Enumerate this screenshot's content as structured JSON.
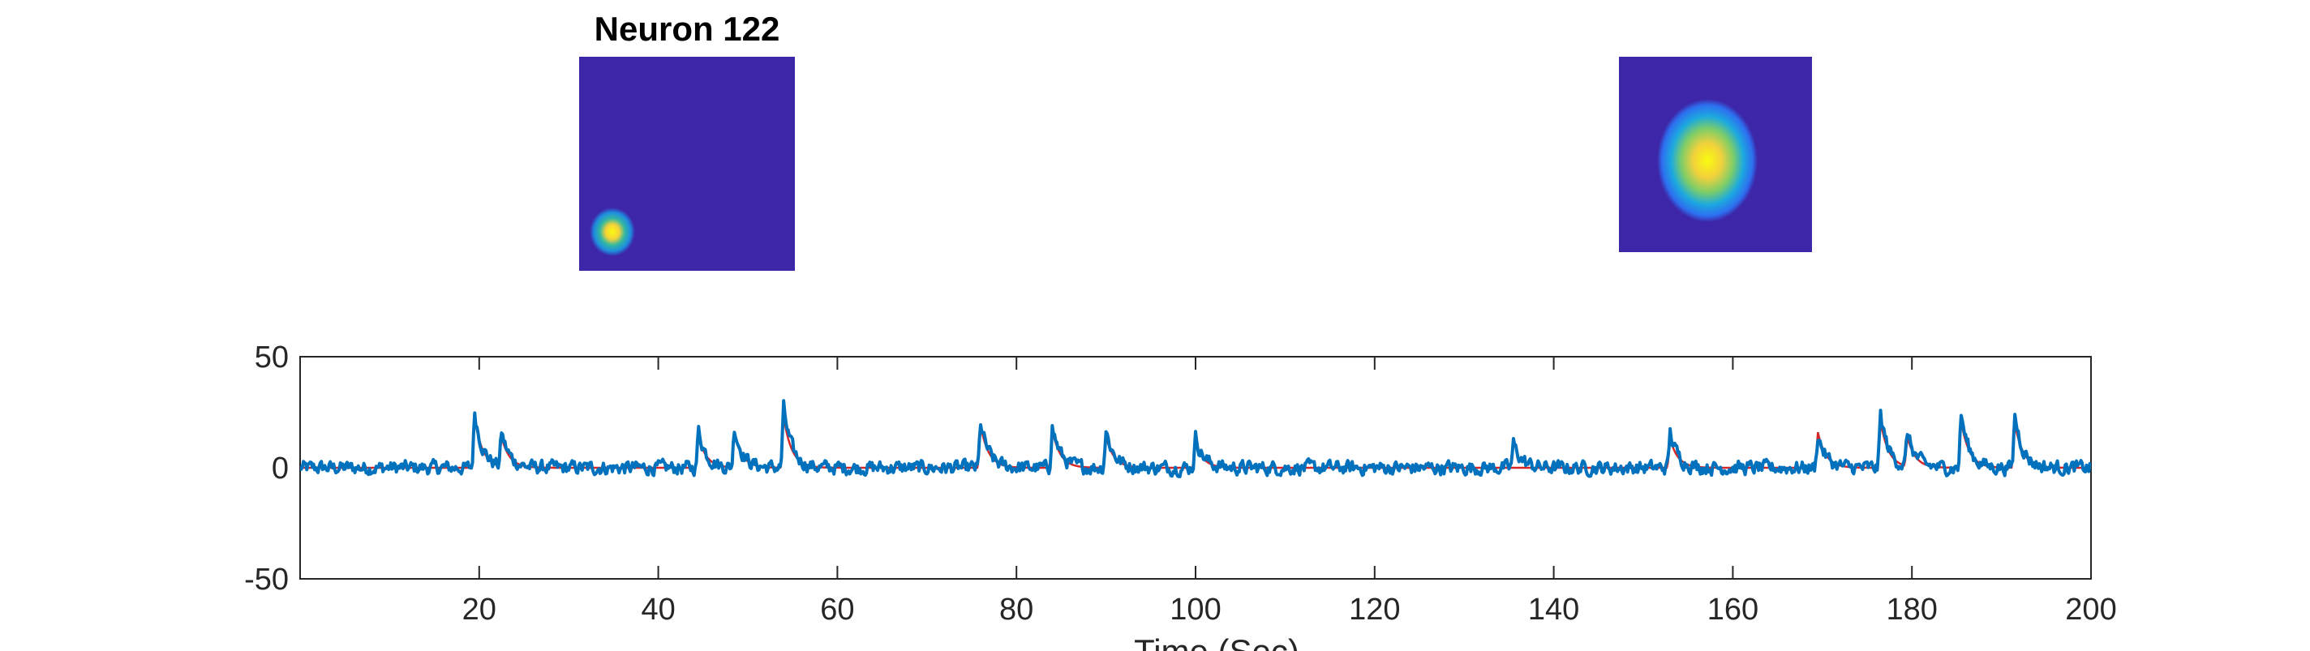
{
  "title": "Neuron 122",
  "xlabel": "Time (Sec)",
  "colors": {
    "image_background": "#3d26a8",
    "trace_raw": "#0072bd",
    "trace_denoised": "#d62728",
    "axes": "#262626"
  },
  "chart_data": {
    "type": "line",
    "title": "Neuron 122",
    "xlabel": "Time (Sec)",
    "ylabel": "",
    "xlim": [
      0,
      200
    ],
    "ylim": [
      -50,
      50
    ],
    "xticks": [
      20,
      40,
      60,
      80,
      100,
      120,
      140,
      160,
      180,
      200
    ],
    "yticks": [
      -50,
      0,
      50
    ],
    "grid": false,
    "series": [
      {
        "color": "#0072bd",
        "baseline": 0,
        "noise_amplitude": 3,
        "peaks": [
          {
            "x": 19.5,
            "y": 25
          },
          {
            "x": 22.5,
            "y": 15
          },
          {
            "x": 44.5,
            "y": 17
          },
          {
            "x": 48.5,
            "y": 18
          },
          {
            "x": 54.0,
            "y": 27
          },
          {
            "x": 76.0,
            "y": 20
          },
          {
            "x": 84.0,
            "y": 19
          },
          {
            "x": 90.0,
            "y": 17
          },
          {
            "x": 100.0,
            "y": 14
          },
          {
            "x": 135.5,
            "y": 11
          },
          {
            "x": 153.0,
            "y": 16
          },
          {
            "x": 169.5,
            "y": 15
          },
          {
            "x": 176.5,
            "y": 24
          },
          {
            "x": 179.5,
            "y": 15
          },
          {
            "x": 185.5,
            "y": 24
          },
          {
            "x": 191.5,
            "y": 24
          }
        ]
      },
      {
        "color": "#d62728",
        "baseline": 0,
        "peaks": [
          {
            "x": 19.5,
            "y": 22
          },
          {
            "x": 22.5,
            "y": 13
          },
          {
            "x": 44.5,
            "y": 14
          },
          {
            "x": 48.5,
            "y": 15
          },
          {
            "x": 54.0,
            "y": 23
          },
          {
            "x": 76.0,
            "y": 19
          },
          {
            "x": 84.0,
            "y": 17
          },
          {
            "x": 90.0,
            "y": 14
          },
          {
            "x": 100.0,
            "y": 11
          },
          {
            "x": 153.0,
            "y": 13
          },
          {
            "x": 169.5,
            "y": 16
          },
          {
            "x": 176.5,
            "y": 21
          },
          {
            "x": 179.5,
            "y": 13
          },
          {
            "x": 185.5,
            "y": 21
          },
          {
            "x": 191.5,
            "y": 20
          }
        ]
      }
    ]
  }
}
